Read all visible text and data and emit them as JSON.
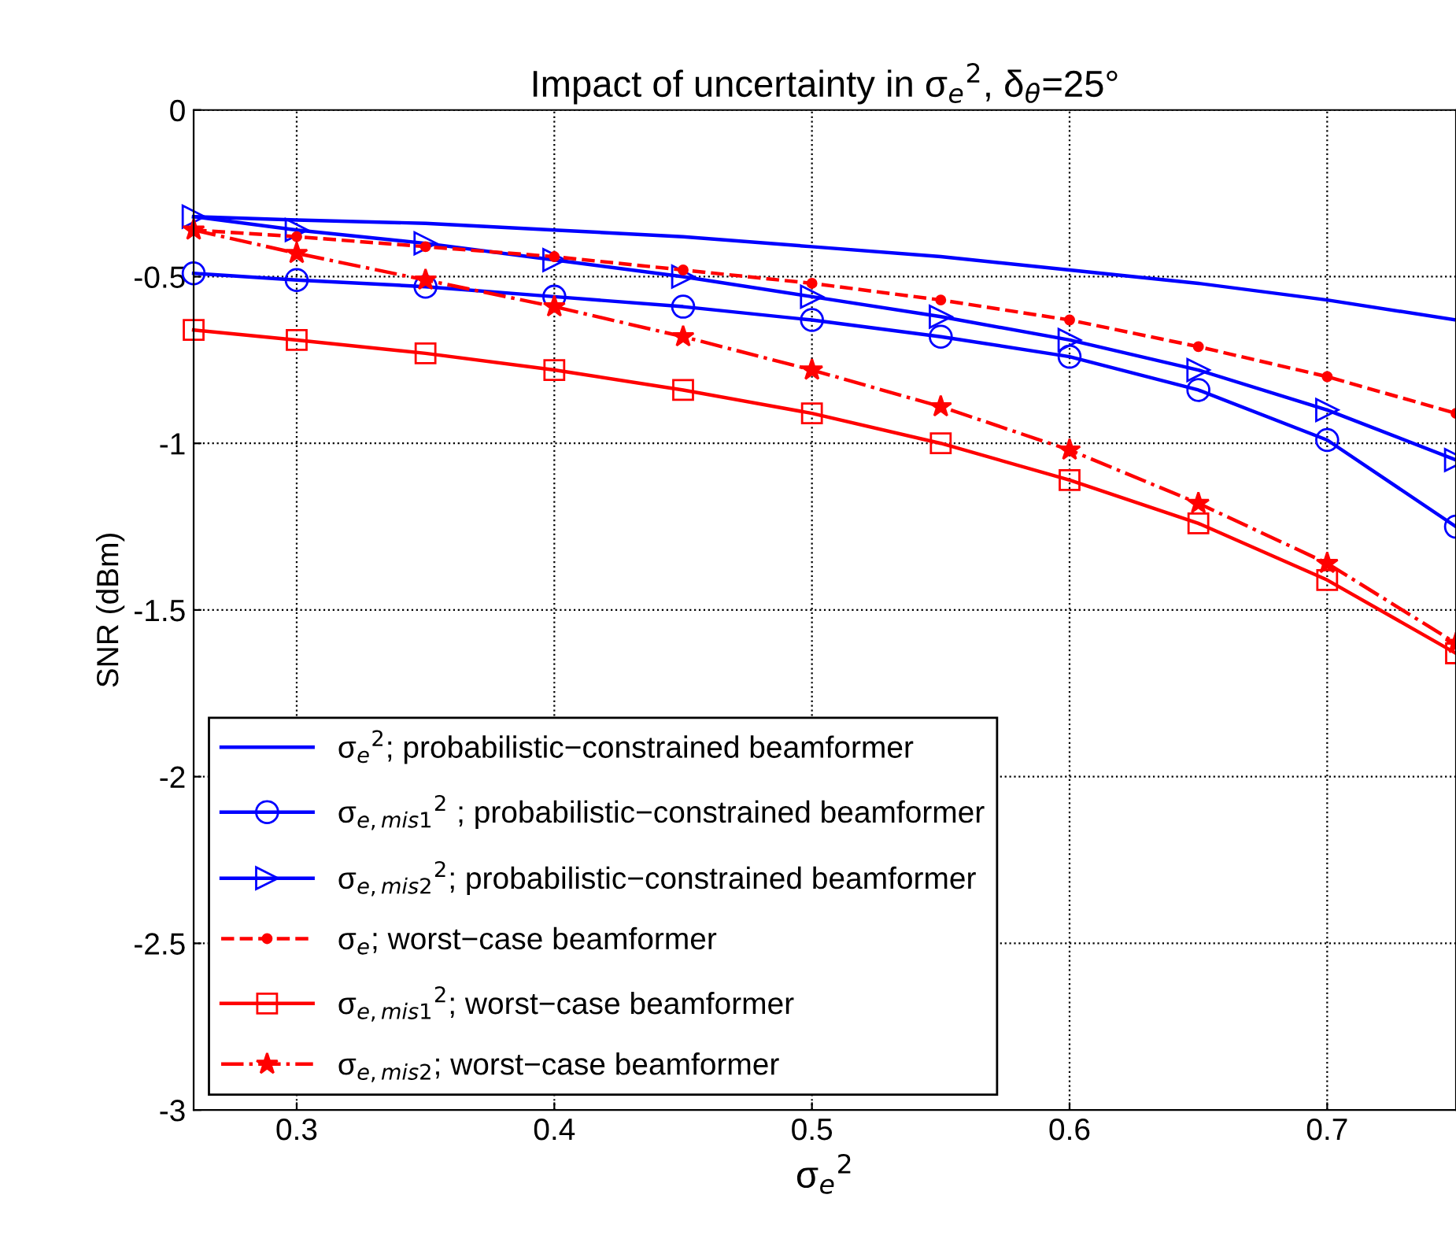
{
  "chart_data": {
    "type": "line",
    "title": "Impact of uncertainty in σ$_{e}$$^{2}$, δ$_{θ}$=25°",
    "xlabel": "σ$_{e}$$^{2}$",
    "ylabel": "SNR (dBm)",
    "x": [
      0.26,
      0.3,
      0.35,
      0.4,
      0.45,
      0.5,
      0.55,
      0.6,
      0.65,
      0.7,
      0.75
    ],
    "series": [
      {
        "name": "σ$_{e}$$^{2}$; probabilistic−constrained beamformer",
        "color": "#0000ff",
        "marker": "none",
        "line_style": "solid",
        "values": [
          -0.32,
          -0.33,
          -0.34,
          -0.36,
          -0.38,
          -0.41,
          -0.44,
          -0.48,
          -0.52,
          -0.57,
          -0.63
        ]
      },
      {
        "name": "σ$_{e,mis1}$$^{2}$ ; probabilistic−constrained beamformer",
        "color": "#0000ff",
        "marker": "circle",
        "line_style": "solid",
        "values": [
          -0.49,
          -0.51,
          -0.53,
          -0.56,
          -0.59,
          -0.63,
          -0.68,
          -0.74,
          -0.84,
          -0.99,
          -1.25
        ]
      },
      {
        "name": "σ$_{e,mis2}$$^{2}$; probabilistic−constrained beamformer",
        "color": "#0000ff",
        "marker": "triangle",
        "line_style": "solid",
        "values": [
          -0.32,
          -0.36,
          -0.4,
          -0.45,
          -0.5,
          -0.56,
          -0.62,
          -0.69,
          -0.78,
          -0.9,
          -1.05
        ]
      },
      {
        "name": "σ$_{e}$; worst−case beamformer",
        "color": "#ff0000",
        "marker": "circle",
        "line_style": "dashed",
        "values": [
          -0.36,
          -0.38,
          -0.41,
          -0.44,
          -0.48,
          -0.52,
          -0.57,
          -0.63,
          -0.71,
          -0.8,
          -0.91
        ]
      },
      {
        "name": "σ$_{e,mis1}$$^{2}$; worst−case beamformer",
        "color": "#ff0000",
        "marker": "square",
        "line_style": "solid",
        "values": [
          -0.66,
          -0.69,
          -0.73,
          -0.78,
          -0.84,
          -0.91,
          -1.0,
          -1.11,
          -1.24,
          -1.41,
          -1.63
        ]
      },
      {
        "name": "σ$_{e,mis2}$; worst−case beamformer",
        "color": "#ff0000",
        "marker": "star",
        "line_style": "dashdot",
        "values": [
          -0.36,
          -0.43,
          -0.51,
          -0.59,
          -0.68,
          -0.78,
          -0.89,
          -1.02,
          -1.18,
          -1.36,
          -1.6
        ]
      }
    ],
    "xlim": [
      0.26,
      0.75
    ],
    "ylim": [
      -3,
      0
    ],
    "xticks": [
      0.3,
      0.4,
      0.5,
      0.6,
      0.7
    ],
    "yticks": [
      -3,
      -2.5,
      -2,
      -1.5,
      -1,
      -0.5,
      0
    ],
    "grid": true,
    "legend": "bottom left"
  }
}
